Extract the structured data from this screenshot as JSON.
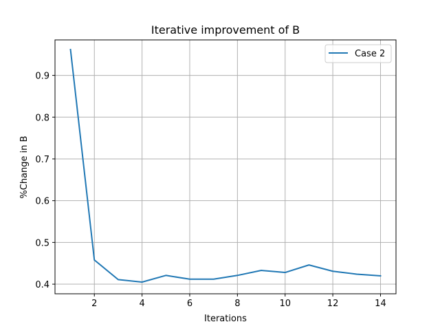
{
  "chart_data": {
    "type": "line",
    "title": "Iterative improvement of B",
    "xlabel": "Iterations",
    "ylabel": "%Change in B",
    "xlim": [
      0.35,
      14.65
    ],
    "ylim": [
      0.377,
      0.985
    ],
    "xticks": [
      2,
      4,
      6,
      8,
      10,
      12,
      14
    ],
    "yticks": [
      0.4,
      0.5,
      0.6,
      0.7,
      0.8,
      0.9
    ],
    "ytick_labels": [
      "0.4",
      "0.5",
      "0.6",
      "0.7",
      "0.8",
      "0.9"
    ],
    "grid": true,
    "legend_position": "top-right",
    "colors": {
      "series": "#1f77b4",
      "grid": "#b0b0b0",
      "axis": "#000000"
    },
    "x": [
      1,
      2,
      3,
      4,
      5,
      6,
      7,
      8,
      9,
      10,
      11,
      12,
      13,
      14
    ],
    "series": [
      {
        "name": "Case 2",
        "values": [
          0.962,
          0.458,
          0.411,
          0.405,
          0.421,
          0.412,
          0.412,
          0.421,
          0.433,
          0.428,
          0.446,
          0.431,
          0.424,
          0.42
        ]
      }
    ]
  }
}
